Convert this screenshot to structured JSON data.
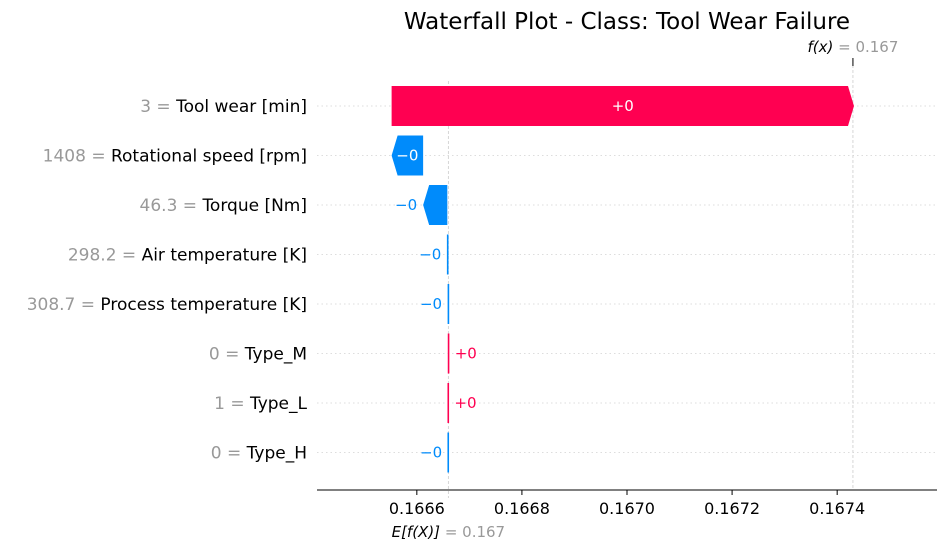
{
  "chart_data": {
    "type": "waterfall",
    "title": "Waterfall Plot - Class: Tool Wear Failure",
    "base_label": "E[f(X)]",
    "base_value": 0.16666,
    "base_value_text": "= 0.167",
    "output_label": "f(x)",
    "output_value": 0.16743,
    "output_value_text": "= 0.167",
    "xlim": [
      0.16641,
      0.16759
    ],
    "xticks": [
      0.1666,
      0.1668,
      0.167,
      0.1672,
      0.1674
    ],
    "xtick_labels": [
      "0.1666",
      "0.1668",
      "0.1670",
      "0.1672",
      "0.1674"
    ],
    "features": [
      {
        "value": "3",
        "name": "Tool wear [min]",
        "shap": 0.00088,
        "label": "+0"
      },
      {
        "value": "1408",
        "name": "Rotational speed [rpm]",
        "shap": -6e-05,
        "label": "−0"
      },
      {
        "value": "46.3",
        "name": "Torque [Nm]",
        "shap": -4.6e-05,
        "label": "−0"
      },
      {
        "value": "298.2",
        "name": "Air temperature [K]",
        "shap": -1.5e-06,
        "label": "−0"
      },
      {
        "value": "308.7",
        "name": "Process temperature [K]",
        "shap": -1.2e-06,
        "label": "−0"
      },
      {
        "value": "0",
        "name": "Type_M",
        "shap": 6e-07,
        "label": "+0"
      },
      {
        "value": "1",
        "name": "Type_L",
        "shap": 5e-07,
        "label": "+0"
      },
      {
        "value": "0",
        "name": "Type_H",
        "shap": -4e-07,
        "label": "−0"
      }
    ],
    "colors": {
      "positive": "#ff0051",
      "negative": "#008bfb",
      "muted": "#999999",
      "grid": "#cccccc"
    }
  }
}
